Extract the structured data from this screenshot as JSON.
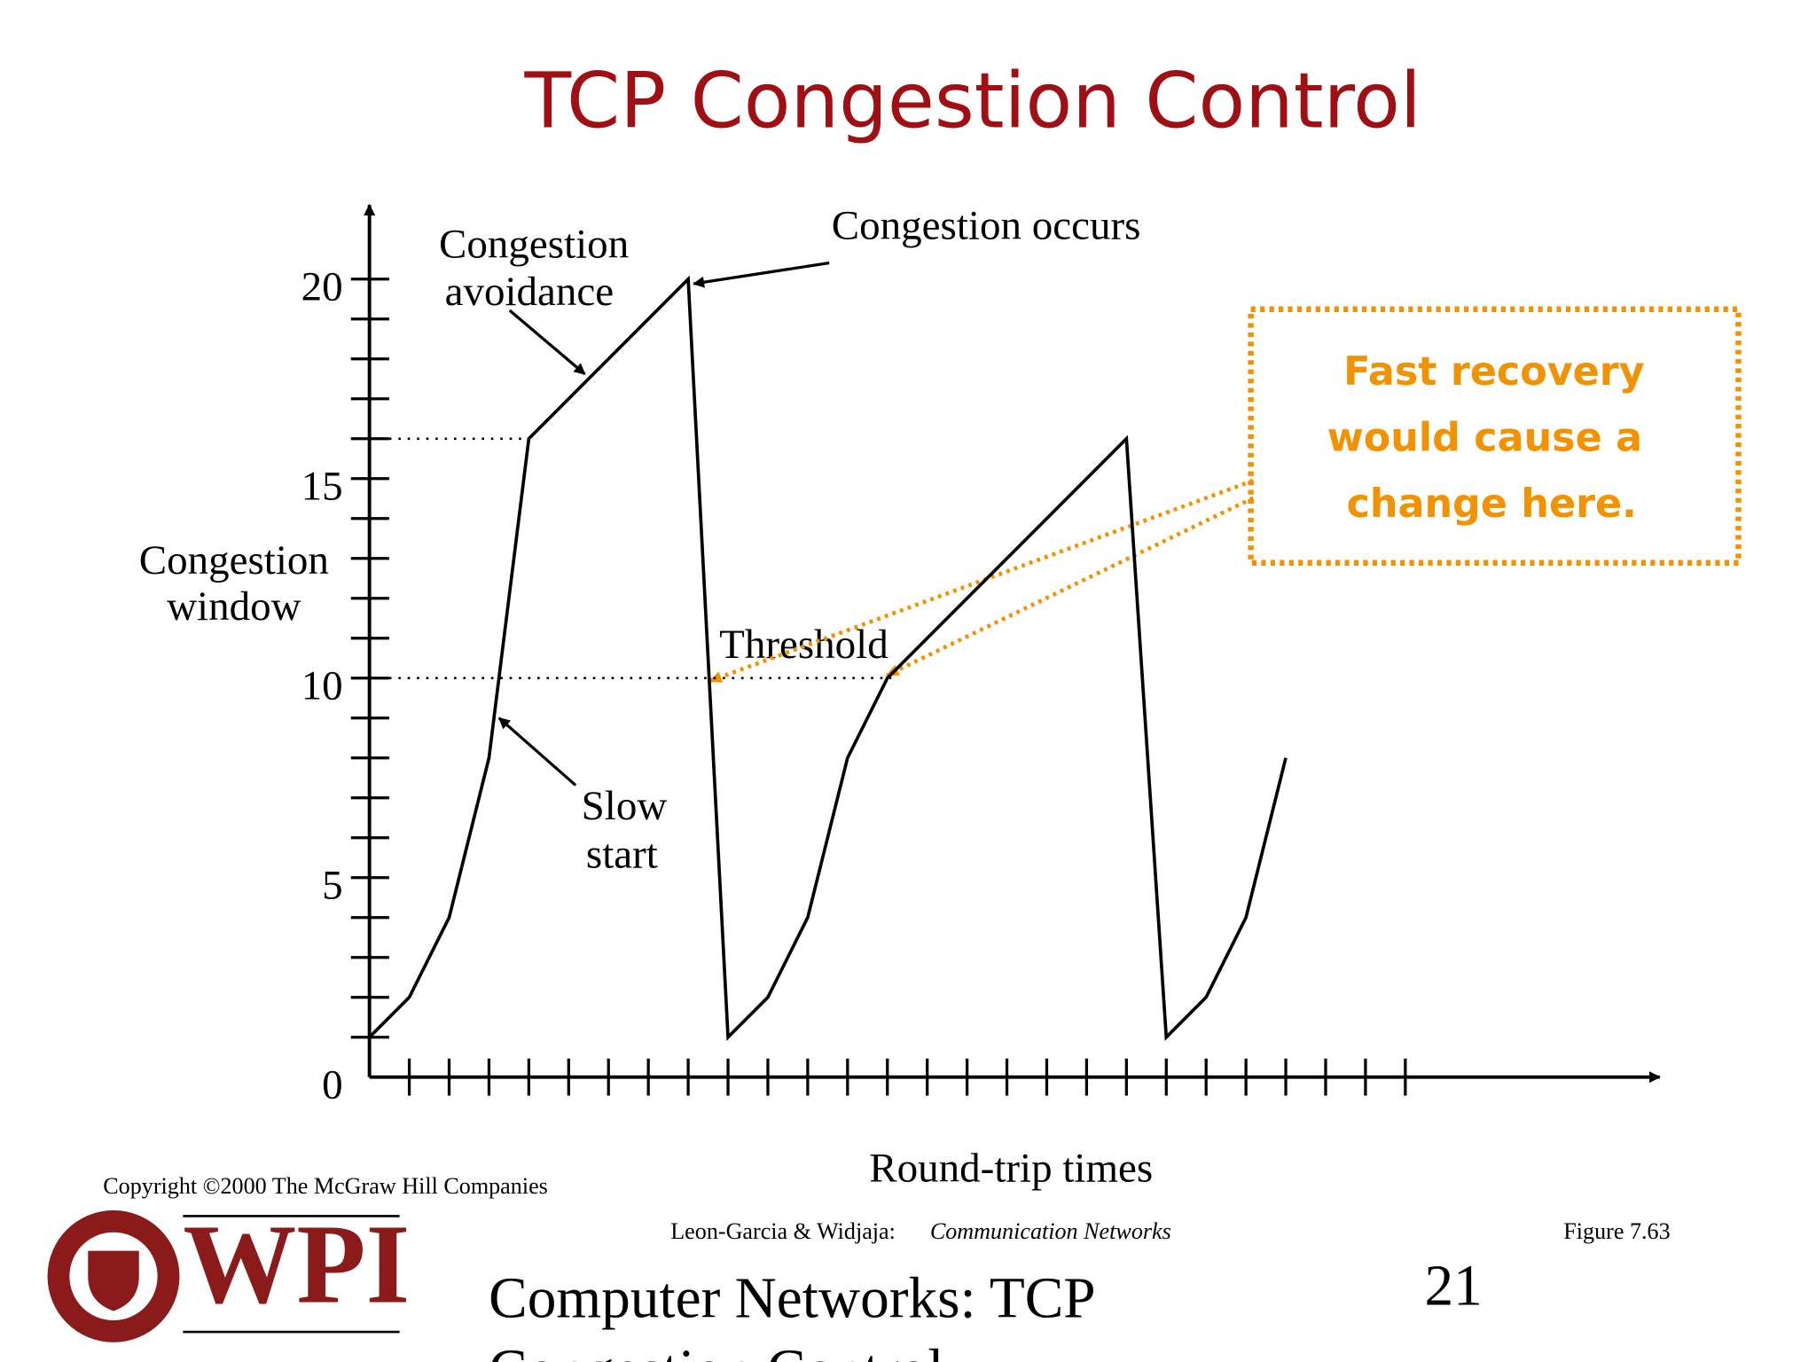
{
  "title": "TCP Congestion Control",
  "chart_data": {
    "type": "line",
    "xlabel": "Round-trip times",
    "ylabel": [
      "Congestion",
      "window"
    ],
    "x": [
      0,
      1,
      2,
      3,
      4,
      8,
      9,
      10,
      11,
      12,
      13,
      19,
      20,
      21,
      22,
      23
    ],
    "series": [
      {
        "color": "#000000",
        "values": [
          1,
          2,
          4,
          8,
          16,
          20,
          1,
          2,
          4,
          8,
          10,
          16,
          1,
          2,
          4,
          8
        ]
      }
    ],
    "xlim": [
      0,
      32.4
    ],
    "ylim": [
      0,
      22
    ],
    "xticks": [
      1,
      2,
      3,
      4,
      5,
      6,
      7,
      8,
      9,
      10,
      11,
      12,
      13,
      14,
      15,
      16,
      17,
      18,
      19,
      20,
      21,
      22,
      23,
      24,
      25,
      26
    ],
    "yticks": [
      0,
      5,
      10,
      15,
      20
    ],
    "yminorticks": [
      1,
      2,
      3,
      4,
      5,
      6,
      7,
      8,
      9,
      10,
      11,
      12,
      13,
      14,
      15,
      16,
      17,
      18,
      19,
      20
    ],
    "threshold_lines": [
      {
        "y": 16,
        "x_end": 4
      },
      {
        "y": 10,
        "x_end": 13.1
      }
    ],
    "annotations": [
      {
        "text": [
          "Congestion",
          "avoidance"
        ]
      },
      {
        "text": [
          "Congestion occurs"
        ]
      },
      {
        "text": [
          "Threshold"
        ]
      },
      {
        "text": [
          "Slow",
          "start"
        ]
      }
    ],
    "callout": {
      "text": [
        "Fast recovery",
        "would cause a",
        "change here."
      ],
      "color": "#f39200"
    }
  },
  "footer": {
    "copyright": "Copyright ©2000 The McGraw Hill Companies",
    "authors": "Leon-Garcia & Widjaja:",
    "book": "Communication Networks",
    "figure": "Figure 7.63",
    "logo": "WPI",
    "subtitle": [
      "Computer Networks: TCP",
      "Congestion Control"
    ],
    "page_number": "21"
  }
}
